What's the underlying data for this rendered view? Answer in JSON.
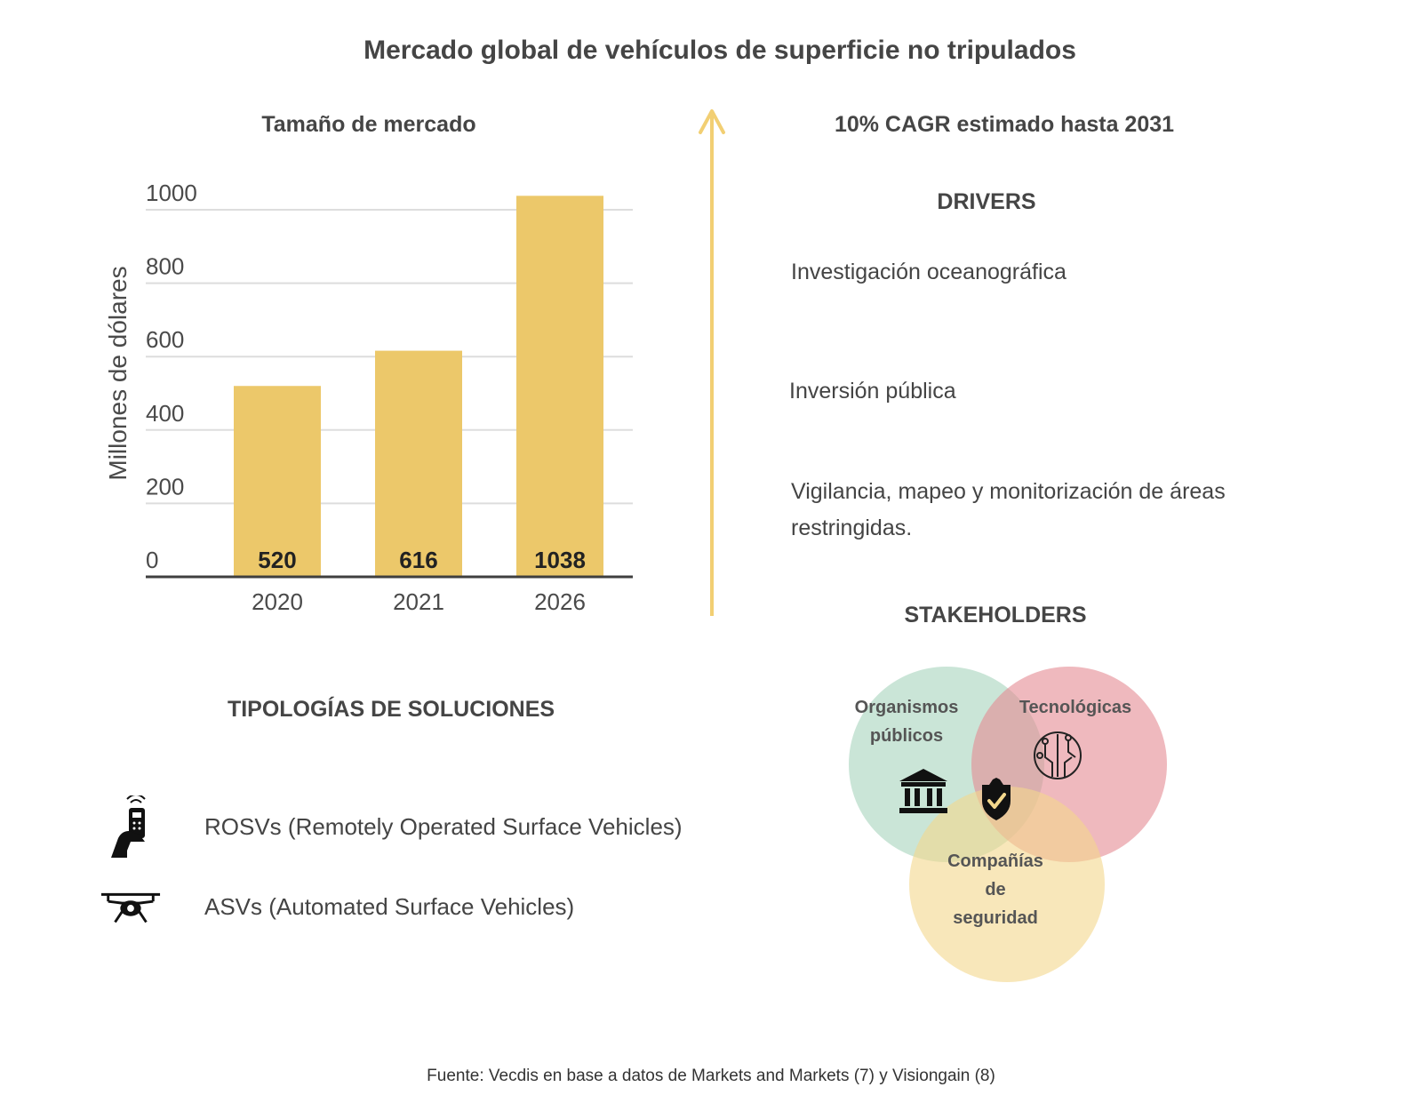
{
  "title": "Mercado global de vehículos de superficie no tripulados",
  "colors": {
    "bar": "#ecc86a",
    "arrow": "#f2cf73",
    "grid": "#dddddd",
    "axis": "#3f3f3f",
    "venn_green": "#a7d3bd",
    "venn_red": "#e58a92",
    "venn_yellow": "#f3d78c"
  },
  "market": {
    "subtitle": "Tamaño de mercado"
  },
  "chart_data": {
    "type": "bar",
    "title": "Tamaño de mercado",
    "categories": [
      "2020",
      "2021",
      "2026"
    ],
    "values": [
      520,
      616,
      1038
    ],
    "data_labels": [
      "520",
      "616",
      "1038"
    ],
    "ylabel": "Millones de dólares",
    "xlabel": "",
    "yticks": [
      "0",
      "200",
      "400",
      "600",
      "800",
      "1000"
    ],
    "ylim": [
      0,
      1000
    ],
    "grid": true
  },
  "cagr": "10% CAGR estimado hasta 2031",
  "drivers": {
    "heading": "DRIVERS",
    "items": [
      "Investigación oceanográfica",
      "Inversión pública",
      "Vigilancia, mapeo y monitorización de áreas restringidas."
    ]
  },
  "stakeholders": {
    "heading": "STAKEHOLDERS",
    "circles": [
      {
        "label": "Organismos públicos",
        "icon": "government-building-icon"
      },
      {
        "label": "Tecnológicas",
        "icon": "circuit-chip-icon"
      },
      {
        "label": "Compañías de seguridad",
        "icon": "security-shield-icon"
      }
    ]
  },
  "typologies": {
    "heading": "TIPOLOGÍAS DE SOLUCIONES",
    "items": [
      {
        "label": "ROSVs (Remotely Operated Surface Vehicles)",
        "icon": "remote-control-hand-icon"
      },
      {
        "label": "ASVs (Automated Surface Vehicles)",
        "icon": "drone-icon"
      }
    ]
  },
  "source": "Fuente: Vecdis en base a datos de Markets and Markets (7) y Visiongain (8)"
}
